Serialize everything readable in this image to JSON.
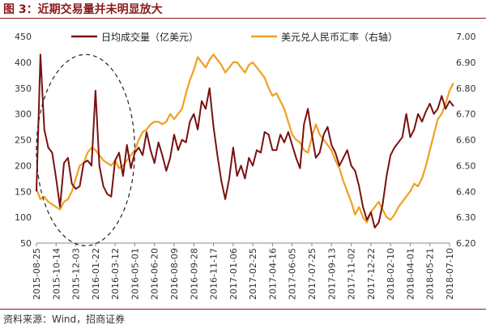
{
  "figure": {
    "title": "图 3：近期交易量并未明显放大",
    "source": "资料来源：Wind，招商证券"
  },
  "colors": {
    "volume": "#7a1010",
    "fx": "#f0a020",
    "title": "#8b1a1a"
  },
  "chart_data": {
    "type": "line",
    "title": "",
    "legend_placement": "top",
    "grid": false,
    "x_categories": [
      "2015-08-25",
      "2015-10-14",
      "2015-12-03",
      "2016-01-22",
      "2016-03-12",
      "2016-05-01",
      "2016-06-20",
      "2016-08-09",
      "2016-09-28",
      "2016-11-17",
      "2017-01-06",
      "2017-02-25",
      "2017-04-16",
      "2017-06-05",
      "2017-07-25",
      "2017-09-13",
      "2017-11-02",
      "2017-12-22",
      "2018-02-10",
      "2018-04-01",
      "2018-05-21",
      "2018-07-10"
    ],
    "y_left": {
      "ylim": [
        50,
        450
      ],
      "ticks": [
        50,
        100,
        150,
        200,
        250,
        300,
        350,
        400,
        450
      ]
    },
    "y_right": {
      "ylim": [
        6.2,
        7.0
      ],
      "ticks": [
        "6.20",
        "6.30",
        "6.40",
        "6.50",
        "6.60",
        "6.70",
        "6.80",
        "6.90",
        "7.00"
      ]
    },
    "series": [
      {
        "name": "日均成交量（亿美元）",
        "axis": "left",
        "x": [
          0,
          0.2,
          0.4,
          0.6,
          0.8,
          1.0,
          1.2,
          1.4,
          1.6,
          1.8,
          2.0,
          2.2,
          2.4,
          2.6,
          2.8,
          3.0,
          3.2,
          3.4,
          3.6,
          3.8,
          4.0,
          4.2,
          4.4,
          4.6,
          4.8,
          5.0,
          5.2,
          5.4,
          5.6,
          5.8,
          6.0,
          6.2,
          6.4,
          6.6,
          6.8,
          7.0,
          7.2,
          7.4,
          7.6,
          7.8,
          8.0,
          8.2,
          8.4,
          8.6,
          8.8,
          9.0,
          9.2,
          9.4,
          9.6,
          9.8,
          10.0,
          10.2,
          10.4,
          10.6,
          10.8,
          11.0,
          11.2,
          11.4,
          11.6,
          11.8,
          12.0,
          12.2,
          12.4,
          12.6,
          12.8,
          13.0,
          13.2,
          13.4,
          13.6,
          13.8,
          14.0,
          14.2,
          14.4,
          14.6,
          14.8,
          15.0,
          15.2,
          15.4,
          15.6,
          15.8,
          16.0,
          16.2,
          16.4,
          16.6,
          16.8,
          17.0,
          17.2,
          17.4,
          17.6,
          17.8,
          18.0,
          18.2,
          18.4,
          18.6,
          18.8,
          19.0,
          19.2,
          19.4,
          19.6,
          19.8,
          20.0,
          20.2,
          20.4,
          20.6,
          20.8,
          21.0,
          21.2
        ],
        "values": [
          150,
          415,
          270,
          235,
          225,
          175,
          120,
          205,
          215,
          165,
          155,
          160,
          205,
          210,
          200,
          345,
          200,
          160,
          145,
          140,
          210,
          225,
          180,
          240,
          195,
          225,
          235,
          220,
          265,
          230,
          205,
          245,
          220,
          190,
          215,
          260,
          230,
          250,
          245,
          285,
          300,
          270,
          325,
          310,
          350,
          275,
          220,
          170,
          135,
          175,
          235,
          180,
          200,
          175,
          215,
          200,
          230,
          225,
          265,
          260,
          230,
          230,
          260,
          245,
          265,
          240,
          215,
          195,
          280,
          310,
          260,
          215,
          225,
          260,
          275,
          240,
          225,
          200,
          215,
          230,
          200,
          190,
          160,
          120,
          95,
          110,
          80,
          90,
          125,
          180,
          220,
          235,
          245,
          255,
          300,
          255,
          270,
          300,
          285,
          305,
          320,
          300,
          310,
          335,
          310,
          325,
          315
        ]
      },
      {
        "name": "美元兑人民币汇率（右轴）",
        "axis": "right",
        "x": [
          0,
          0.2,
          0.4,
          0.6,
          0.8,
          1.0,
          1.2,
          1.4,
          1.6,
          1.8,
          2.0,
          2.2,
          2.4,
          2.6,
          2.8,
          3.0,
          3.2,
          3.4,
          3.6,
          3.8,
          4.0,
          4.2,
          4.4,
          4.6,
          4.8,
          5.0,
          5.2,
          5.4,
          5.6,
          5.8,
          6.0,
          6.2,
          6.4,
          6.6,
          6.8,
          7.0,
          7.2,
          7.4,
          7.6,
          7.8,
          8.0,
          8.2,
          8.4,
          8.6,
          8.8,
          9.0,
          9.2,
          9.4,
          9.6,
          9.8,
          10.0,
          10.2,
          10.4,
          10.6,
          10.8,
          11.0,
          11.2,
          11.4,
          11.6,
          11.8,
          12.0,
          12.2,
          12.4,
          12.6,
          12.8,
          13.0,
          13.2,
          13.4,
          13.6,
          13.8,
          14.0,
          14.2,
          14.4,
          14.6,
          14.8,
          15.0,
          15.2,
          15.4,
          15.6,
          15.8,
          16.0,
          16.2,
          16.4,
          16.6,
          16.8,
          17.0,
          17.2,
          17.4,
          17.6,
          17.8,
          18.0,
          18.2,
          18.4,
          18.6,
          18.8,
          19.0,
          19.2,
          19.4,
          19.6,
          19.8,
          20.0,
          20.2,
          20.4,
          20.6,
          20.8,
          21.0,
          21.2
        ],
        "values": [
          6.41,
          6.37,
          6.38,
          6.36,
          6.35,
          6.34,
          6.33,
          6.36,
          6.37,
          6.4,
          6.45,
          6.5,
          6.51,
          6.55,
          6.57,
          6.56,
          6.54,
          6.52,
          6.51,
          6.5,
          6.52,
          6.49,
          6.5,
          6.52,
          6.54,
          6.56,
          6.6,
          6.63,
          6.64,
          6.66,
          6.67,
          6.67,
          6.66,
          6.67,
          6.7,
          6.68,
          6.7,
          6.72,
          6.78,
          6.83,
          6.87,
          6.92,
          6.9,
          6.88,
          6.91,
          6.93,
          6.91,
          6.89,
          6.86,
          6.88,
          6.9,
          6.9,
          6.88,
          6.86,
          6.89,
          6.9,
          6.88,
          6.86,
          6.84,
          6.8,
          6.77,
          6.78,
          6.75,
          6.72,
          6.67,
          6.62,
          6.6,
          6.59,
          6.56,
          6.55,
          6.61,
          6.66,
          6.62,
          6.6,
          6.58,
          6.56,
          6.52,
          6.49,
          6.44,
          6.4,
          6.36,
          6.31,
          6.34,
          6.3,
          6.28,
          6.32,
          6.34,
          6.36,
          6.33,
          6.3,
          6.29,
          6.31,
          6.34,
          6.36,
          6.38,
          6.4,
          6.43,
          6.42,
          6.45,
          6.5,
          6.56,
          6.62,
          6.68,
          6.7,
          6.74,
          6.79,
          6.82
        ]
      }
    ],
    "annotations": [
      {
        "shape": "dashed-ellipse",
        "x_center": 2.5,
        "y_center": 230,
        "x_radius": 2.5,
        "y_radius": 185
      }
    ]
  }
}
